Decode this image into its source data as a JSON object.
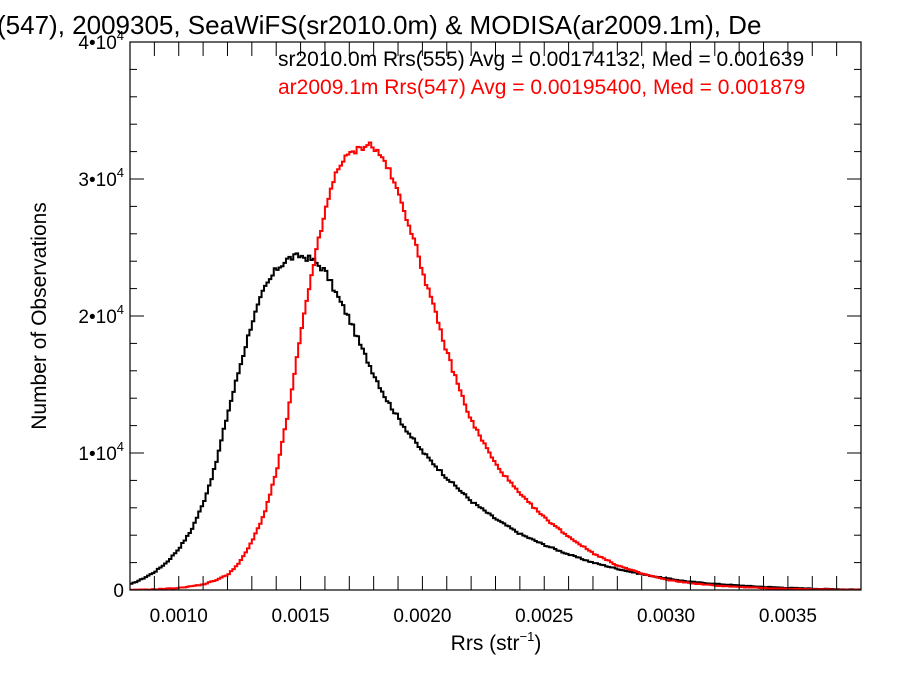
{
  "chart_data": {
    "type": "line",
    "step": true,
    "title": "(547), 2009305, SeaWiFS(sr2010.0m) & MODISA(ar2009.1m), De",
    "xlabel": "Rrs (str",
    "xlabel_sup": "−1",
    "xlabel_end": ")",
    "ylabel": "Number of Observations",
    "xlim": [
      0.0008,
      0.0038
    ],
    "ylim": [
      0,
      40000
    ],
    "x_ticks": [
      {
        "value": 0.001,
        "label": "0.0010"
      },
      {
        "value": 0.0015,
        "label": "0.0015"
      },
      {
        "value": 0.002,
        "label": "0.0020"
      },
      {
        "value": 0.0025,
        "label": "0.0025"
      },
      {
        "value": 0.003,
        "label": "0.0030"
      },
      {
        "value": 0.0035,
        "label": "0.0035"
      }
    ],
    "y_ticks": [
      {
        "value": 0,
        "base": "0",
        "exp": ""
      },
      {
        "value": 10000,
        "base": "1•10",
        "exp": "4"
      },
      {
        "value": 20000,
        "base": "2•10",
        "exp": "4"
      },
      {
        "value": 30000,
        "base": "3•10",
        "exp": "4"
      },
      {
        "value": 40000,
        "base": "4•10",
        "exp": "4"
      }
    ],
    "series": [
      {
        "name": "sr2010.0m Rrs(555)",
        "stats_label": "sr2010.0m Rrs(555) Avg = 0.00174132, Med = 0.001639",
        "color": "#000000",
        "x": [
          0.0008,
          0.00085,
          0.0009,
          0.00095,
          0.001,
          0.00105,
          0.0011,
          0.00115,
          0.0012,
          0.00125,
          0.0013,
          0.00135,
          0.0014,
          0.00145,
          0.0015,
          0.00155,
          0.0016,
          0.00165,
          0.0017,
          0.00175,
          0.0018,
          0.00185,
          0.0019,
          0.00195,
          0.002,
          0.0021,
          0.0022,
          0.0023,
          0.0024,
          0.0025,
          0.0026,
          0.0027,
          0.0028,
          0.0029,
          0.003,
          0.0031,
          0.0032,
          0.0033,
          0.0034,
          0.0035,
          0.0036,
          0.0037,
          0.0038
        ],
        "y": [
          400,
          800,
          1300,
          2000,
          3000,
          4300,
          6300,
          9000,
          12800,
          16200,
          19500,
          21900,
          23400,
          24200,
          24400,
          24100,
          23300,
          21500,
          19800,
          17700,
          15800,
          14000,
          12600,
          11300,
          10100,
          8200,
          6500,
          5200,
          4100,
          3300,
          2600,
          2000,
          1550,
          1150,
          850,
          600,
          450,
          330,
          230,
          160,
          100,
          60,
          30
        ]
      },
      {
        "name": "ar2009.1m Rrs(547)",
        "stats_label": "ar2009.1m Rrs(547) Avg = 0.00195400, Med = 0.001879",
        "color": "#ff0000",
        "x": [
          0.0008,
          0.0009,
          0.001,
          0.0011,
          0.00115,
          0.0012,
          0.00125,
          0.0013,
          0.00135,
          0.0014,
          0.00145,
          0.0015,
          0.00155,
          0.0016,
          0.00165,
          0.0017,
          0.00175,
          0.00178,
          0.0018,
          0.00185,
          0.0019,
          0.00195,
          0.002,
          0.00205,
          0.0021,
          0.00215,
          0.0022,
          0.0023,
          0.0024,
          0.0025,
          0.0026,
          0.0027,
          0.0028,
          0.0029,
          0.003,
          0.0031,
          0.0032,
          0.0033,
          0.0034,
          0.0035,
          0.0036,
          0.0037,
          0.0038
        ],
        "y": [
          0,
          50,
          150,
          400,
          700,
          1100,
          2000,
          3500,
          5500,
          8500,
          13000,
          18500,
          23500,
          27500,
          30800,
          31800,
          32300,
          32600,
          32300,
          31200,
          29000,
          26500,
          23400,
          20400,
          17400,
          14800,
          12400,
          9200,
          7000,
          5300,
          3900,
          2700,
          1800,
          1200,
          750,
          500,
          330,
          220,
          140,
          90,
          50,
          25,
          10
        ]
      }
    ]
  }
}
